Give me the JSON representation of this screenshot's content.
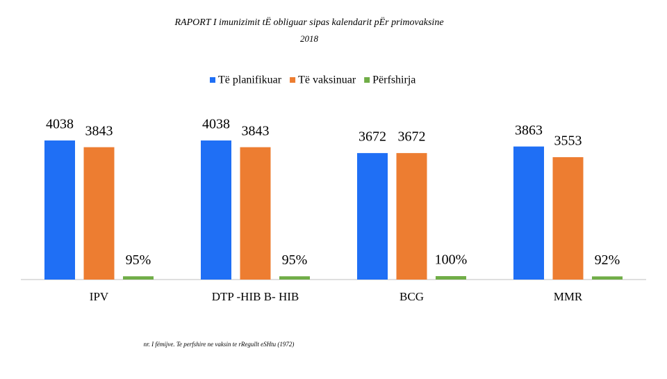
{
  "chart_data": {
    "type": "bar",
    "title": "RAPORT I imunizimit  tË obliguar sipas kalendarit pËr  primovaksine",
    "subtitle": "2018",
    "categories": [
      "IPV",
      "DTP -HIB B- HIB",
      "BCG",
      "MMR"
    ],
    "series": [
      {
        "name": "Të planifikuar",
        "color": "#1f6ff5",
        "values": [
          4038,
          4038,
          3672,
          3863
        ]
      },
      {
        "name": "Të vaksinuar",
        "color": "#ed7d31",
        "values": [
          3843,
          3843,
          3672,
          3553
        ]
      },
      {
        "name": "Përfshirja",
        "color": "#70ad47",
        "values": [
          95,
          95,
          100,
          92
        ],
        "value_labels": [
          "95%",
          "95%",
          "100%",
          "92%"
        ]
      }
    ],
    "legend": "top",
    "note": "nr. I fëmijve. Te perfshire ne vaksin te rRegullt eSHtu (1972)"
  }
}
